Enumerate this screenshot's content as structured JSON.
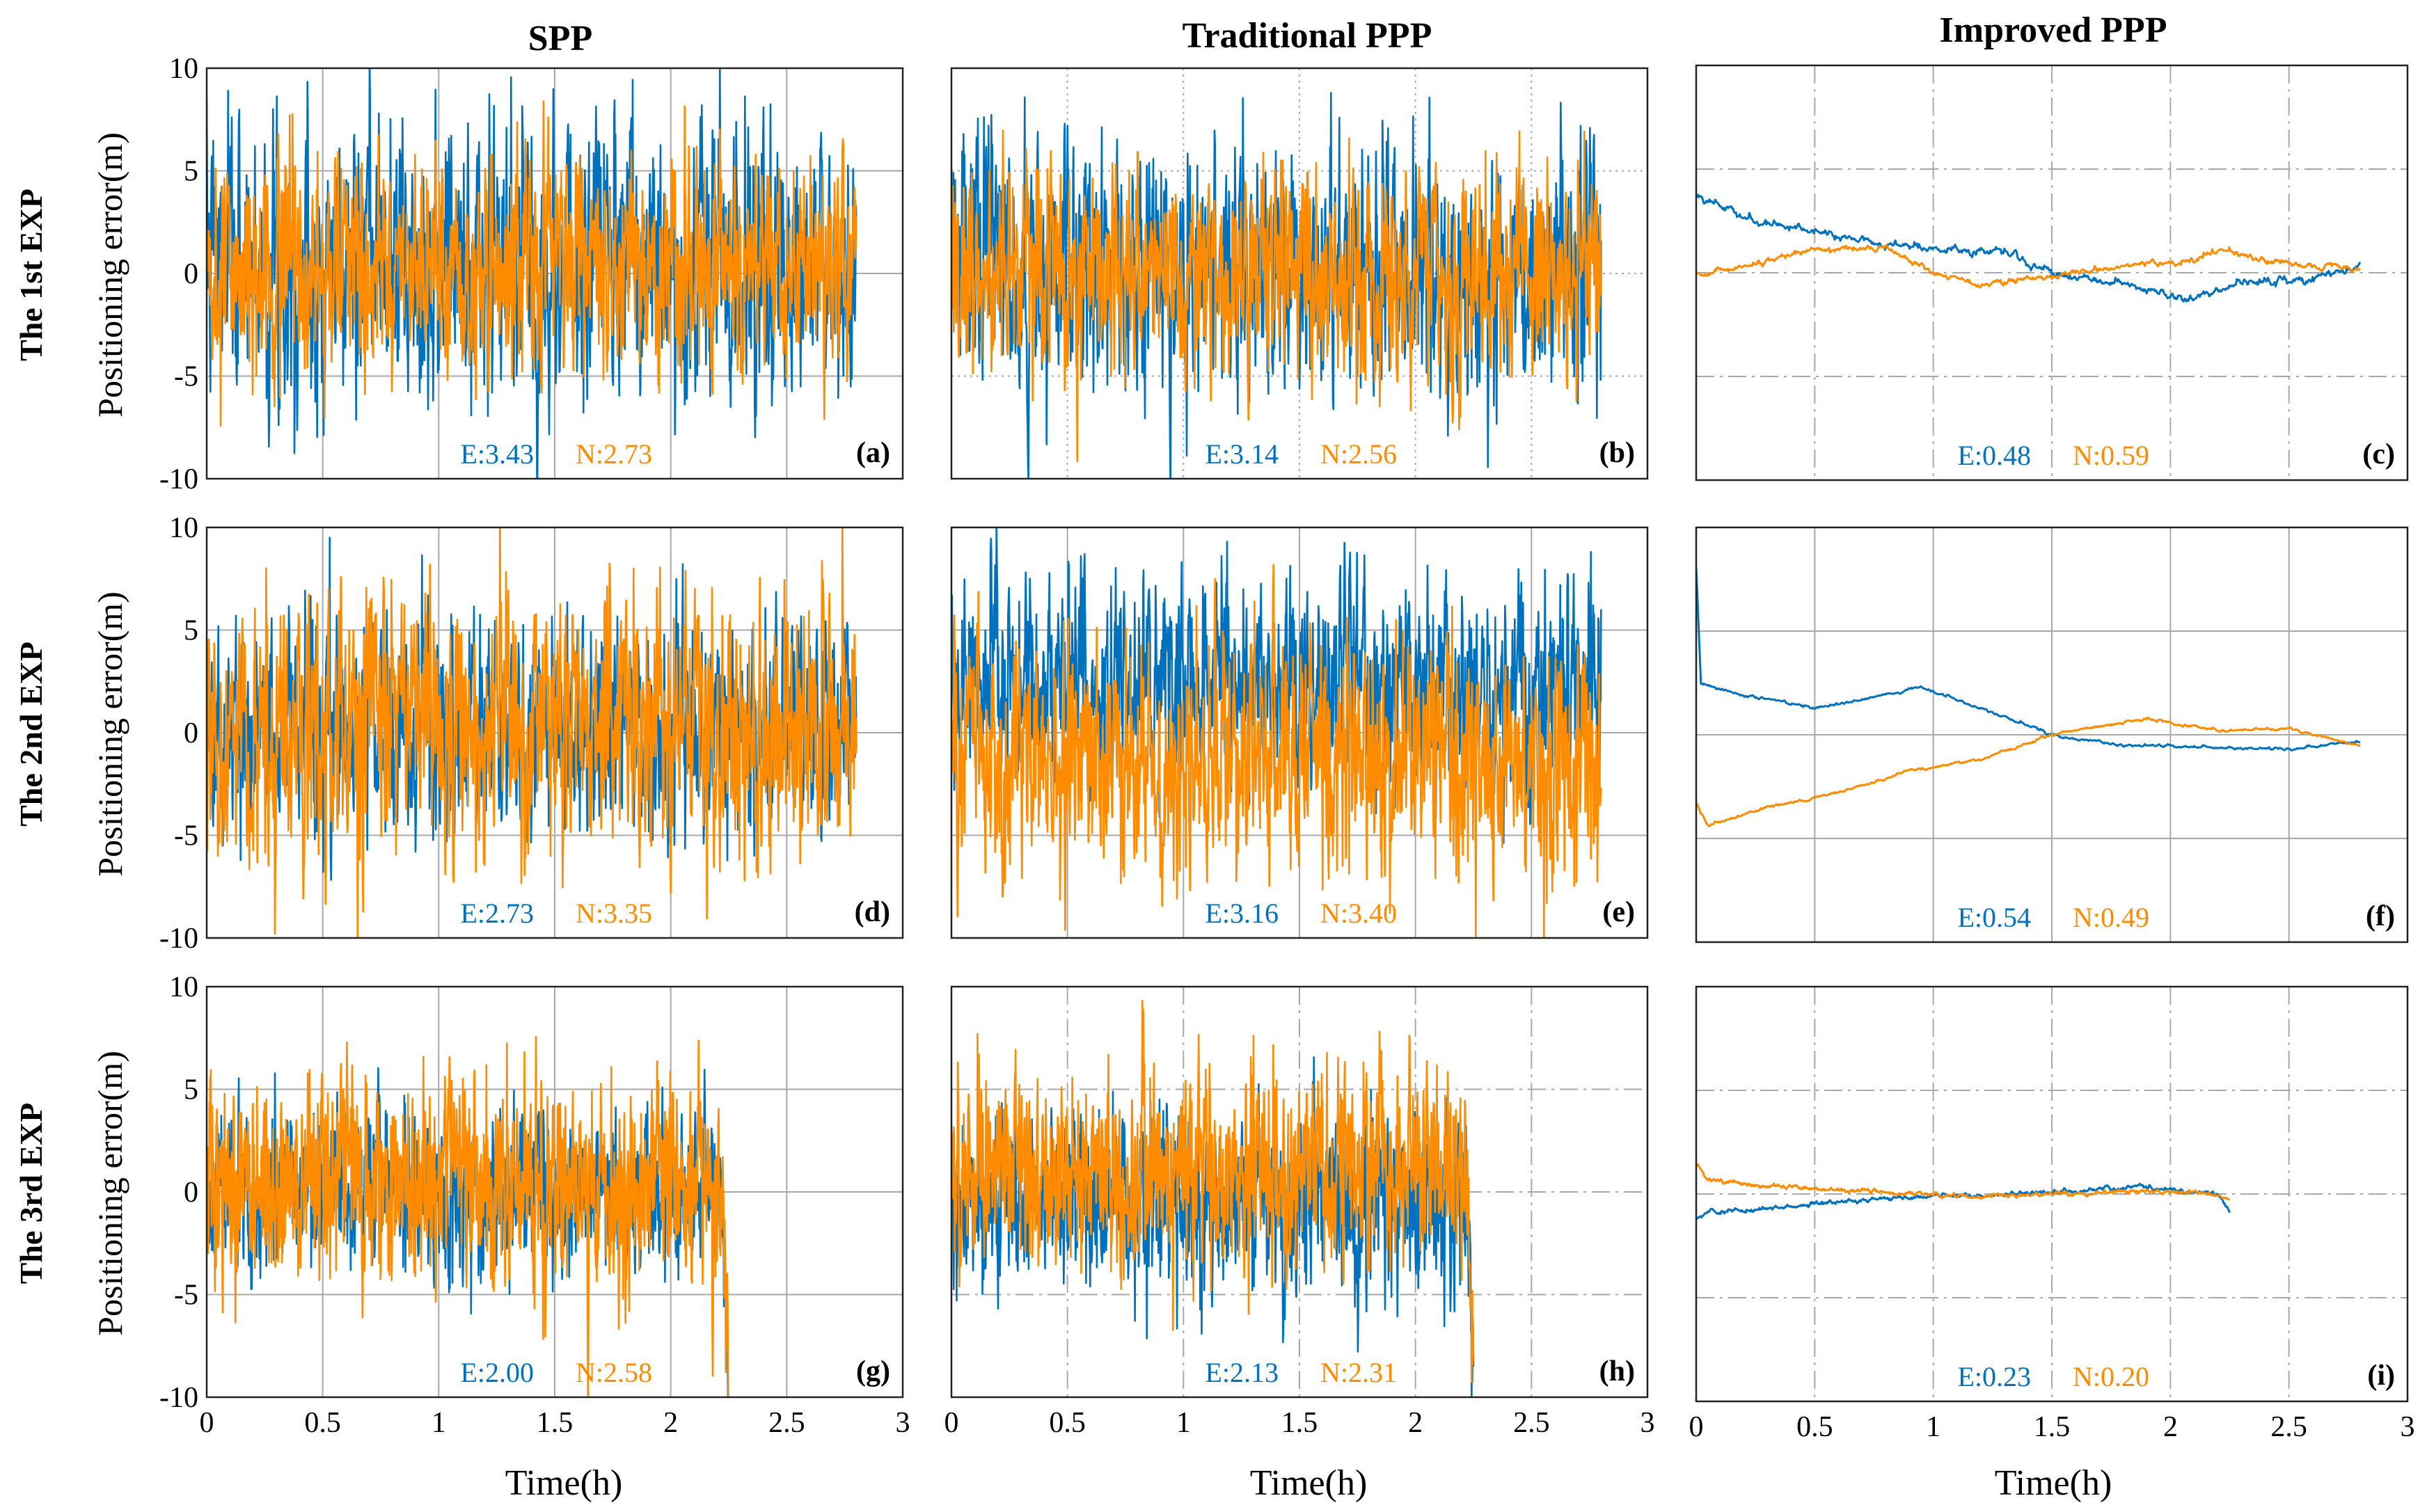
{
  "figure": {
    "column_titles": [
      "SPP",
      "Traditional PPP",
      "Improved PPP"
    ],
    "row_titles": [
      "The 1st EXP",
      "The 2nd EXP",
      "The 3rd EXP"
    ],
    "ylabel": "Positioning error(m)",
    "xlabel": "Time(h)",
    "legend_colors": {
      "E": "#0072BD",
      "N": "#FF8C00"
    }
  },
  "chart_data": [
    {
      "type": "line",
      "panel": "(a)",
      "experiment": "The 1st EXP",
      "method": "SPP",
      "xlim": [
        0,
        3
      ],
      "ylim": [
        -10,
        10
      ],
      "x_end": 2.8,
      "xticks": [],
      "yticks": [
        "10",
        "5",
        "0",
        "-5",
        "-10"
      ],
      "grid": "solid",
      "stats": {
        "E": "E:3.43",
        "N": "N:2.73"
      },
      "series": [
        {
          "name": "E",
          "bias": 0.5,
          "noise_sd": 3.43,
          "kind": "noise"
        },
        {
          "name": "N",
          "bias": 0.0,
          "noise_sd": 2.73,
          "kind": "noise"
        }
      ]
    },
    {
      "type": "line",
      "panel": "(b)",
      "experiment": "The 1st EXP",
      "method": "Traditional PPP",
      "xlim": [
        0,
        3
      ],
      "ylim": [
        -10,
        10
      ],
      "x_end": 2.8,
      "xticks": [],
      "yticks": [],
      "grid": "dotted",
      "stats": {
        "E": "E:3.14",
        "N": "N:2.56"
      },
      "series": [
        {
          "name": "E",
          "bias": 0.3,
          "noise_sd": 3.14,
          "kind": "noise"
        },
        {
          "name": "N",
          "bias": 0.0,
          "noise_sd": 2.56,
          "kind": "noise"
        }
      ]
    },
    {
      "type": "line",
      "panel": "(c)",
      "experiment": "The 1st EXP",
      "method": "Improved PPP",
      "xlim": [
        0,
        3
      ],
      "ylim": [
        -10,
        10
      ],
      "x_end": 2.8,
      "xticks": [],
      "yticks": [],
      "grid": "dashed",
      "stats": {
        "E": "E:0.48",
        "N": "N:0.59"
      },
      "series": [
        {
          "name": "E",
          "kind": "smooth",
          "noise_sd": 0.15,
          "points": [
            [
              0,
              3.7
            ],
            [
              0.1,
              3.3
            ],
            [
              0.25,
              2.4
            ],
            [
              0.5,
              2.0
            ],
            [
              0.8,
              1.4
            ],
            [
              1.0,
              1.2
            ],
            [
              1.3,
              1.0
            ],
            [
              1.5,
              0.0
            ],
            [
              1.8,
              -0.5
            ],
            [
              2.05,
              -1.2
            ],
            [
              2.3,
              -0.5
            ],
            [
              2.6,
              -0.3
            ],
            [
              2.8,
              0.4
            ]
          ]
        },
        {
          "name": "N",
          "kind": "smooth",
          "noise_sd": 0.12,
          "points": [
            [
              0,
              -0.1
            ],
            [
              0.2,
              0.3
            ],
            [
              0.5,
              1.1
            ],
            [
              0.8,
              1.2
            ],
            [
              1.0,
              0.0
            ],
            [
              1.2,
              -0.6
            ],
            [
              1.5,
              -0.2
            ],
            [
              1.8,
              0.3
            ],
            [
              2.1,
              0.6
            ],
            [
              2.2,
              1.2
            ],
            [
              2.4,
              0.5
            ],
            [
              2.6,
              0.4
            ],
            [
              2.8,
              0.2
            ]
          ]
        }
      ]
    },
    {
      "type": "line",
      "panel": "(d)",
      "experiment": "The 2nd EXP",
      "method": "SPP",
      "xlim": [
        0,
        3
      ],
      "ylim": [
        -10,
        10
      ],
      "x_end": 2.8,
      "xticks": [],
      "yticks": [
        "10",
        "5",
        "0",
        "-5",
        "-10"
      ],
      "grid": "solid",
      "stats": {
        "E": "E:2.73",
        "N": "N:3.35"
      },
      "series": [
        {
          "name": "E",
          "bias": 0.3,
          "noise_sd": 2.73,
          "kind": "noise"
        },
        {
          "name": "N",
          "bias": 0.2,
          "noise_sd": 3.35,
          "kind": "noise"
        }
      ]
    },
    {
      "type": "line",
      "panel": "(e)",
      "experiment": "The 2nd EXP",
      "method": "Traditional PPP",
      "xlim": [
        0,
        3
      ],
      "ylim": [
        -10,
        10
      ],
      "x_end": 2.8,
      "xticks": [],
      "yticks": [],
      "grid": "solid",
      "stats": {
        "E": "E:3.16",
        "N": "N:3.40"
      },
      "series": [
        {
          "name": "E",
          "bias": 2.5,
          "noise_sd": 2.6,
          "kind": "noise"
        },
        {
          "name": "N",
          "bias": -1.5,
          "noise_sd": 3.0,
          "kind": "noise"
        }
      ]
    },
    {
      "type": "line",
      "panel": "(f)",
      "experiment": "The 2nd EXP",
      "method": "Improved PPP",
      "xlim": [
        0,
        3
      ],
      "ylim": [
        -10,
        10
      ],
      "x_end": 2.8,
      "xticks": [],
      "yticks": [],
      "grid": "solid",
      "stats": {
        "E": "E:0.54",
        "N": "N:0.49"
      },
      "series": [
        {
          "name": "E",
          "kind": "smooth",
          "noise_sd": 0.05,
          "points": [
            [
              0,
              8.0
            ],
            [
              0.02,
              2.5
            ],
            [
              0.2,
              1.9
            ],
            [
              0.5,
              1.3
            ],
            [
              0.7,
              1.7
            ],
            [
              0.95,
              2.3
            ],
            [
              1.2,
              1.3
            ],
            [
              1.5,
              0.0
            ],
            [
              1.8,
              -0.5
            ],
            [
              2.2,
              -0.6
            ],
            [
              2.5,
              -0.7
            ],
            [
              2.8,
              -0.3
            ]
          ]
        },
        {
          "name": "N",
          "kind": "smooth",
          "noise_sd": 0.05,
          "points": [
            [
              0,
              -3.3
            ],
            [
              0.05,
              -4.4
            ],
            [
              0.3,
              -3.5
            ],
            [
              0.6,
              -2.8
            ],
            [
              0.9,
              -1.7
            ],
            [
              1.2,
              -1.2
            ],
            [
              1.5,
              0.0
            ],
            [
              1.9,
              0.8
            ],
            [
              2.2,
              0.2
            ],
            [
              2.5,
              0.3
            ],
            [
              2.8,
              -0.5
            ]
          ]
        }
      ]
    },
    {
      "type": "line",
      "panel": "(g)",
      "experiment": "The 3rd EXP",
      "method": "SPP",
      "xlim": [
        0,
        3
      ],
      "ylim": [
        -10,
        10
      ],
      "x_end": 2.25,
      "xticks": [
        "0",
        "0.5",
        "1",
        "1.5",
        "2",
        "2.5",
        "3"
      ],
      "yticks": [
        "10",
        "5",
        "0",
        "-5",
        "-10"
      ],
      "grid": "solid",
      "stats": {
        "E": "E:2.00",
        "N": "N:2.58"
      },
      "series": [
        {
          "name": "E",
          "bias": 0.0,
          "noise_sd": 2.0,
          "kind": "noise"
        },
        {
          "name": "N",
          "bias": 0.4,
          "noise_sd": 2.58,
          "kind": "noise"
        }
      ]
    },
    {
      "type": "line",
      "panel": "(h)",
      "experiment": "The 3rd EXP",
      "method": "Traditional PPP",
      "xlim": [
        0,
        3
      ],
      "ylim": [
        -10,
        10
      ],
      "x_end": 2.25,
      "xticks": [
        "0",
        "0.5",
        "1",
        "1.5",
        "2",
        "2.5",
        "3"
      ],
      "yticks": [],
      "grid": "dashed",
      "stats": {
        "E": "E:2.13",
        "N": "N:2.31"
      },
      "series": [
        {
          "name": "E",
          "bias": -0.5,
          "noise_sd": 2.13,
          "kind": "noise"
        },
        {
          "name": "N",
          "bias": 1.0,
          "noise_sd": 2.31,
          "kind": "noise"
        }
      ]
    },
    {
      "type": "line",
      "panel": "(i)",
      "experiment": "The 3rd EXP",
      "method": "Improved PPP",
      "xlim": [
        0,
        3
      ],
      "ylim": [
        -10,
        10
      ],
      "x_end": 2.25,
      "xticks": [
        "0",
        "0.5",
        "1",
        "1.5",
        "2",
        "2.5",
        "3"
      ],
      "yticks": [],
      "grid": "dashed",
      "stats": {
        "E": "E:0.23",
        "N": "N:0.20"
      },
      "series": [
        {
          "name": "E",
          "kind": "smooth",
          "noise_sd": 0.08,
          "points": [
            [
              0,
              -1.2
            ],
            [
              0.05,
              -0.9
            ],
            [
              0.3,
              -0.7
            ],
            [
              0.7,
              -0.3
            ],
            [
              1.0,
              -0.1
            ],
            [
              1.3,
              0.0
            ],
            [
              1.6,
              0.1
            ],
            [
              1.85,
              0.4
            ],
            [
              2.05,
              0.2
            ],
            [
              2.2,
              0.0
            ],
            [
              2.25,
              -0.8
            ]
          ]
        },
        {
          "name": "N",
          "kind": "smooth",
          "noise_sd": 0.08,
          "points": [
            [
              0,
              1.4
            ],
            [
              0.05,
              0.7
            ],
            [
              0.3,
              0.4
            ],
            [
              0.6,
              0.2
            ],
            [
              0.9,
              0.0
            ],
            [
              1.2,
              -0.1
            ],
            [
              1.5,
              0.0
            ],
            [
              1.8,
              0.1
            ],
            [
              2.0,
              0.1
            ],
            [
              2.2,
              0.0
            ],
            [
              2.25,
              -0.3
            ]
          ]
        }
      ]
    }
  ]
}
